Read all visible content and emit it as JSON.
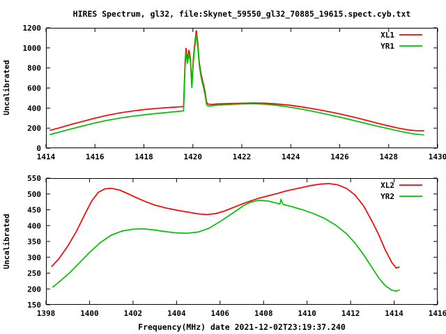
{
  "title": "HIRES Spectrum, gl32, file:Skynet_59550_gl32_70885_19615.spect.cyb.txt",
  "colors": {
    "series1": "#ff0000",
    "series2": "#00c000",
    "axis": "#000000",
    "background": "#ffffff"
  },
  "chart_data": [
    {
      "type": "line",
      "title": "HIRES Spectrum, gl32, file:Skynet_59550_gl32_70885_19615.spect.cyb.txt",
      "xlabel": "",
      "ylabel": "Uncalibrated",
      "xlim": [
        1414,
        1430
      ],
      "ylim": [
        0,
        1200
      ],
      "xticks": [
        1414,
        1416,
        1418,
        1420,
        1422,
        1424,
        1426,
        1428,
        1430
      ],
      "yticks": [
        0,
        200,
        400,
        600,
        800,
        1000,
        1200
      ],
      "grid": false,
      "legend_position": "top-right",
      "series": [
        {
          "name": "XL1",
          "color": "#ff0000",
          "x": [
            1414.15,
            1414.5,
            1415,
            1415.5,
            1416,
            1416.5,
            1417,
            1417.5,
            1418,
            1418.5,
            1419,
            1419.3,
            1419.62,
            1419.68,
            1419.72,
            1419.78,
            1419.84,
            1419.9,
            1419.96,
            1420.02,
            1420.08,
            1420.14,
            1420.2,
            1420.26,
            1420.32,
            1420.38,
            1420.44,
            1420.5,
            1420.56,
            1420.62,
            1420.8,
            1421,
            1421.5,
            1422,
            1422.5,
            1423,
            1423.5,
            1424,
            1424.5,
            1425,
            1425.5,
            1426,
            1426.5,
            1427,
            1427.5,
            1428,
            1428.4,
            1428.8,
            1429.1,
            1429.45
          ],
          "y": [
            178,
            200,
            235,
            268,
            300,
            328,
            352,
            370,
            385,
            397,
            405,
            410,
            415,
            850,
            1000,
            880,
            980,
            900,
            630,
            900,
            1050,
            1175,
            1050,
            860,
            760,
            690,
            630,
            560,
            460,
            440,
            437,
            441,
            445,
            448,
            451,
            448,
            440,
            427,
            410,
            390,
            367,
            342,
            314,
            284,
            252,
            222,
            200,
            183,
            175,
            174
          ]
        },
        {
          "name": "YR1",
          "color": "#00c000",
          "x": [
            1414.15,
            1414.5,
            1415,
            1415.5,
            1416,
            1416.5,
            1417,
            1417.5,
            1418,
            1418.5,
            1419,
            1419.3,
            1419.62,
            1419.68,
            1419.72,
            1419.78,
            1419.84,
            1419.9,
            1419.96,
            1420.02,
            1420.08,
            1420.14,
            1420.2,
            1420.26,
            1420.32,
            1420.38,
            1420.44,
            1420.5,
            1420.56,
            1420.62,
            1420.8,
            1421,
            1421.5,
            1422,
            1422.5,
            1423,
            1423.5,
            1424,
            1424.5,
            1425,
            1425.5,
            1426,
            1426.5,
            1427,
            1427.5,
            1428,
            1428.4,
            1428.8,
            1429.1,
            1429.45
          ],
          "y": [
            135,
            158,
            190,
            222,
            252,
            278,
            300,
            318,
            333,
            346,
            357,
            365,
            372,
            800,
            960,
            845,
            945,
            865,
            600,
            865,
            1015,
            1140,
            1015,
            830,
            730,
            660,
            600,
            530,
            435,
            420,
            424,
            429,
            436,
            441,
            444,
            438,
            426,
            408,
            387,
            363,
            337,
            310,
            281,
            251,
            221,
            195,
            172,
            152,
            140,
            133
          ]
        }
      ]
    },
    {
      "type": "line",
      "title": "",
      "xlabel": "Frequency(MHz) date 2021-12-02T23:19:37.240",
      "ylabel": "Uncalibrated",
      "xlim": [
        1398,
        1416
      ],
      "ylim": [
        150,
        550
      ],
      "xticks": [
        1398,
        1400,
        1402,
        1404,
        1406,
        1408,
        1410,
        1412,
        1414,
        1416
      ],
      "yticks": [
        150,
        200,
        250,
        300,
        350,
        400,
        450,
        500,
        550
      ],
      "grid": false,
      "legend_position": "top-right",
      "series": [
        {
          "name": "XL2",
          "color": "#ff0000",
          "x": [
            1398.25,
            1398.6,
            1399.0,
            1399.4,
            1399.8,
            1400.1,
            1400.4,
            1400.7,
            1401.0,
            1401.4,
            1401.8,
            1402.2,
            1402.6,
            1403.0,
            1403.5,
            1404.0,
            1404.5,
            1405.0,
            1405.4,
            1405.8,
            1406.2,
            1406.6,
            1407.0,
            1407.4,
            1407.8,
            1408.2,
            1408.6,
            1409.0,
            1409.4,
            1409.8,
            1410.2,
            1410.6,
            1411.0,
            1411.4,
            1411.8,
            1412.2,
            1412.6,
            1413.0,
            1413.3,
            1413.6,
            1413.9,
            1414.1,
            1414.25
          ],
          "y": [
            270,
            296,
            335,
            382,
            438,
            478,
            505,
            516,
            518,
            512,
            500,
            487,
            475,
            465,
            456,
            449,
            443,
            437,
            435,
            438,
            446,
            457,
            468,
            478,
            487,
            494,
            501,
            509,
            515,
            521,
            527,
            531,
            533,
            529,
            518,
            497,
            462,
            412,
            370,
            322,
            283,
            266,
            270
          ]
        },
        {
          "name": "YR2",
          "color": "#00c000",
          "x": [
            1398.3,
            1398.7,
            1399.1,
            1399.5,
            1400.0,
            1400.5,
            1401.0,
            1401.5,
            1402.0,
            1402.5,
            1403.0,
            1403.5,
            1404.0,
            1404.5,
            1405.0,
            1405.5,
            1406.0,
            1406.4,
            1406.8,
            1407.1,
            1407.4,
            1407.8,
            1408.2,
            1408.6,
            1408.75,
            1408.8,
            1408.9,
            1409.3,
            1409.8,
            1410.3,
            1410.8,
            1411.3,
            1411.8,
            1412.2,
            1412.6,
            1413.0,
            1413.3,
            1413.6,
            1413.9,
            1414.1,
            1414.25
          ],
          "y": [
            205,
            228,
            252,
            280,
            315,
            347,
            370,
            383,
            389,
            390,
            386,
            381,
            377,
            376,
            380,
            392,
            413,
            431,
            450,
            464,
            474,
            480,
            478,
            471,
            468,
            482,
            467,
            460,
            450,
            438,
            423,
            402,
            375,
            345,
            308,
            266,
            234,
            210,
            196,
            193,
            197
          ]
        }
      ]
    }
  ]
}
